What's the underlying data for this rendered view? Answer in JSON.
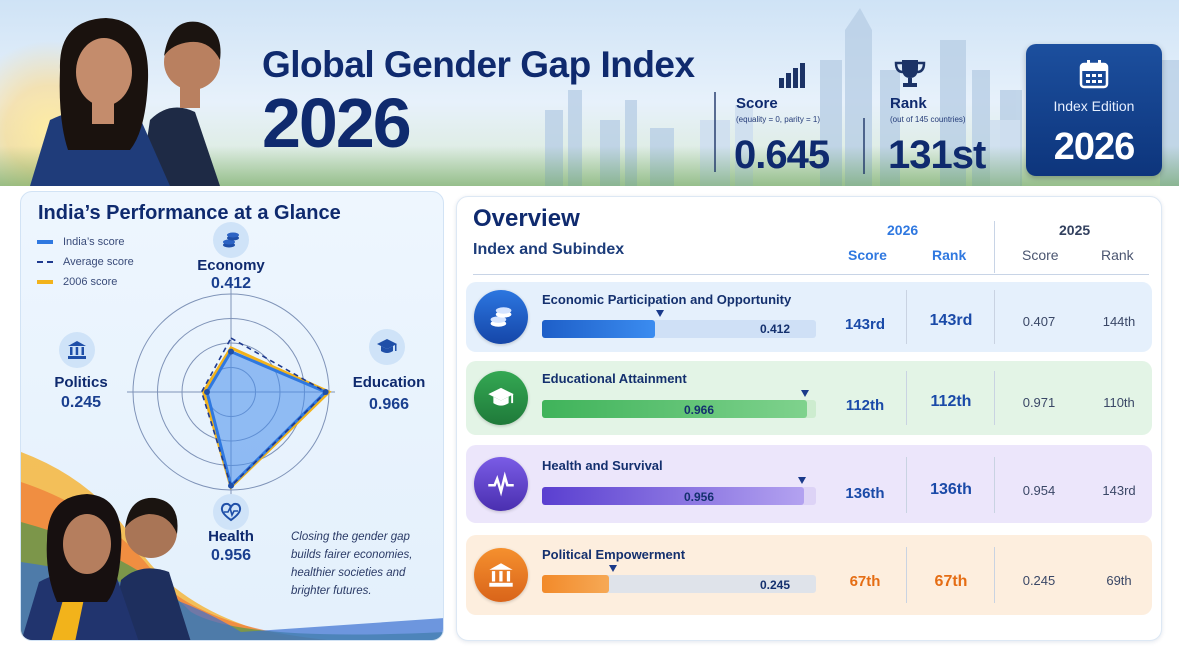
{
  "header": {
    "title": "Global Gender Gap Index",
    "year": "2026",
    "score_label": "Score",
    "score_note": "(equality = 0, parity = 1)",
    "score_value": "0.645",
    "rank_label": "Rank",
    "rank_note": "(out of 145 countries)",
    "rank_value": "131st",
    "edition_label": "Index Edition",
    "edition_year": "2026"
  },
  "glance": {
    "title": "India’s Performance at a Glance",
    "legend": [
      {
        "label": "India’s score",
        "color": "#2f78e0",
        "style": "solid"
      },
      {
        "label": "Average score",
        "color": "#1f3a8f",
        "style": "dashed"
      },
      {
        "label": "2006 score",
        "color": "#f2b31b",
        "style": "solid"
      }
    ],
    "axes": [
      {
        "name": "Economy",
        "value": "0.412",
        "icon": "coins-icon"
      },
      {
        "name": "Education",
        "value": "0.966",
        "icon": "graduation-cap-icon"
      },
      {
        "name": "Health",
        "value": "0.956",
        "icon": "heart-pulse-icon"
      },
      {
        "name": "Politics",
        "value": "0.245",
        "icon": "parliament-icon"
      }
    ],
    "quote": "Closing the gender gap builds fairer economies, healthier societies and brighter futures."
  },
  "chart_data": {
    "type": "radar",
    "categories": [
      "Economy",
      "Education",
      "Health",
      "Politics"
    ],
    "series": [
      {
        "name": "India’s score",
        "values": [
          0.412,
          0.966,
          0.956,
          0.245
        ]
      },
      {
        "name": "Average score",
        "values": [
          0.55,
          0.97,
          0.96,
          0.3
        ]
      },
      {
        "name": "2006 score",
        "values": [
          0.45,
          1.0,
          0.97,
          0.28
        ]
      }
    ],
    "range": [
      0,
      1
    ],
    "grid": true
  },
  "overview": {
    "title": "Overview",
    "subtitle": "Index and Subindex",
    "year_current": "2026",
    "year_previous": "2025",
    "col_score": "Score",
    "col_rank": "Rank",
    "rows": [
      {
        "name": "Economic Participation and Opportunity",
        "icon": "coins-icon",
        "bar_value": "0.412",
        "fill": 0.412,
        "marker": 0.43,
        "score_rank_2026": "143rd",
        "rank_2026": "143rd",
        "score_2025": "0.407",
        "rank_2025": "144th",
        "theme": "blue"
      },
      {
        "name": "Educational Attainment",
        "icon": "graduation-cap-icon",
        "bar_value": "0.966",
        "fill": 0.966,
        "marker": 0.96,
        "score_rank_2026": "112th",
        "rank_2026": "112th",
        "score_2025": "0.971",
        "rank_2025": "110th",
        "theme": "green"
      },
      {
        "name": "Health and Survival",
        "icon": "heart-pulse-icon",
        "bar_value": "0.956",
        "fill": 0.956,
        "marker": 0.95,
        "score_rank_2026": "136th",
        "rank_2026": "136th",
        "score_2025": "0.954",
        "rank_2025": "143rd",
        "theme": "purple"
      },
      {
        "name": "Political Empowerment",
        "icon": "parliament-icon",
        "bar_value": "0.245",
        "fill": 0.245,
        "marker": 0.26,
        "score_rank_2026": "67th",
        "rank_2026": "67th",
        "score_2025": "0.245",
        "rank_2025": "69th",
        "theme": "orange"
      }
    ]
  },
  "colors": {
    "navy": "#0f2a6e",
    "blue": "#2f78e0",
    "green": "#2fa84f",
    "purple": "#6a4bd6",
    "orange": "#f28a2a",
    "gold": "#f2b31b"
  }
}
